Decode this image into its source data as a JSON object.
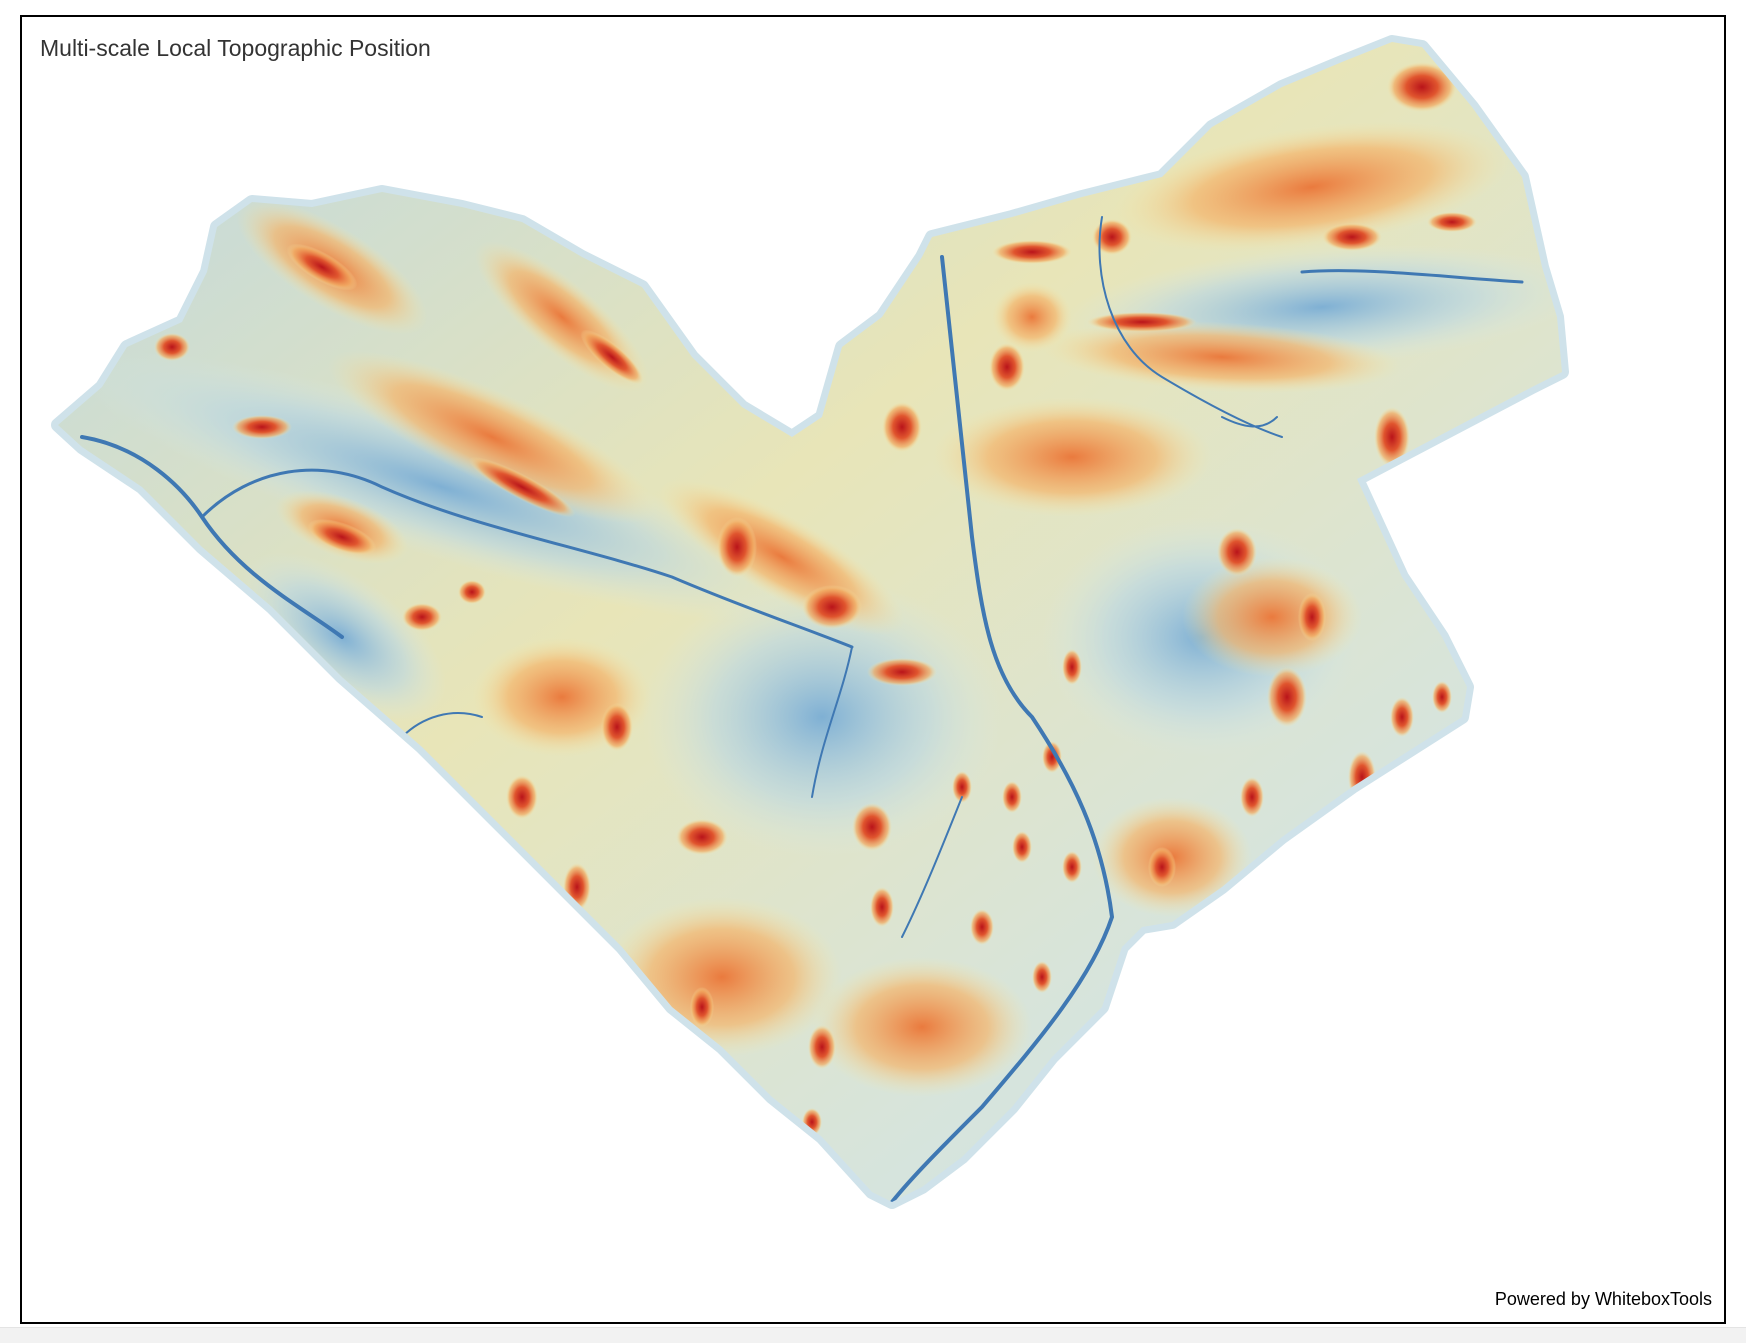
{
  "map": {
    "title": "Multi-scale Local Topographic Position",
    "attribution": "Powered by WhiteboxTools"
  },
  "legend_colors": {
    "low": "#4a7fb5",
    "mid_low": "#a8cce0",
    "mid": "#f5e6a6",
    "mid_high": "#ef9a4e",
    "high": "#b9141a"
  },
  "icons": {
    "zoom": "none-visible"
  }
}
